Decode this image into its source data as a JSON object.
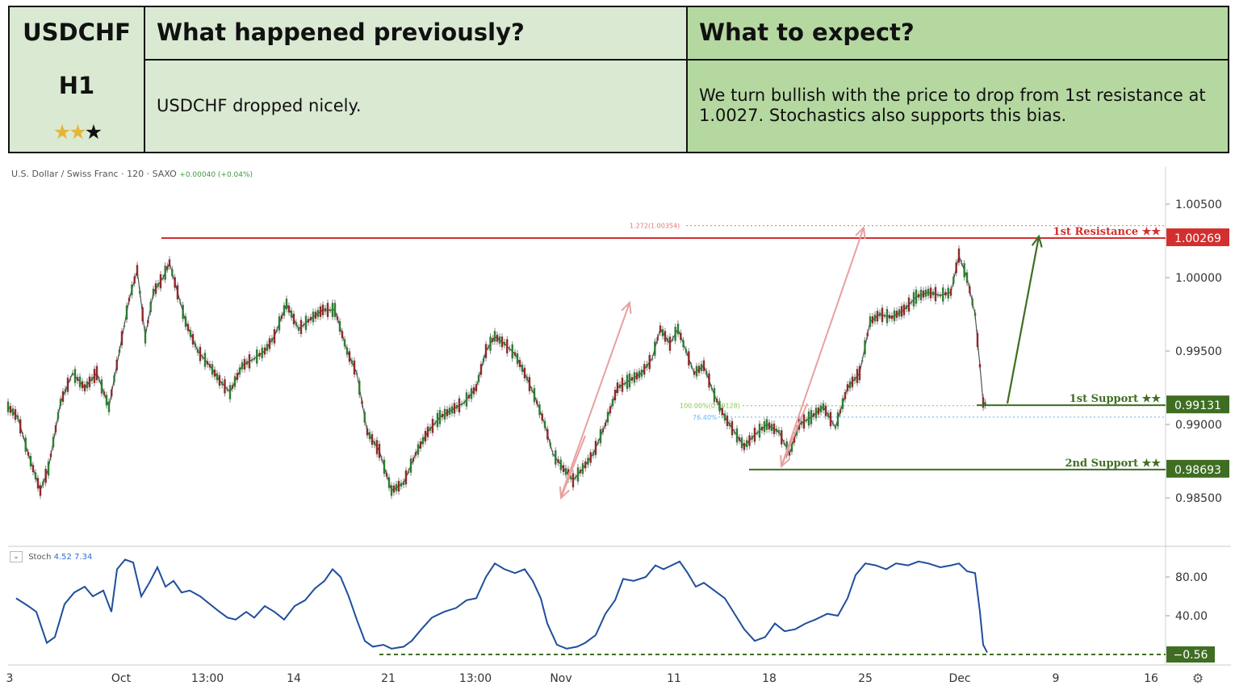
{
  "header": {
    "symbol": "USDCHF",
    "timeframe": "H1",
    "rating_stars": 2,
    "rating_max": 3,
    "previous_title": "What happened previously?",
    "previous_text": "USDCHF dropped nicely.",
    "expect_title": "What to expect?",
    "expect_text": "We turn bullish with the price to drop from 1st resistance at 1.0027. Stochastics also supports this bias.",
    "colors": {
      "left_bg": "#dae9d2",
      "right_bg": "#b5d8a1"
    }
  },
  "chart_caption": {
    "instrument": "U.S. Dollar / Swiss Franc · 120 · SAXO",
    "change": "+0.00040 (+0.04%)"
  },
  "stoch_caption": {
    "name": "Stoch",
    "k": "4.52",
    "d": "7.34",
    "collapse_icon": "chevron-down-icon"
  },
  "settings_icon": "gear-icon",
  "chart_data": {
    "type": "line",
    "title": "",
    "price_axis": {
      "ticks": [
        "1.00500",
        "1.00000",
        "0.99500",
        "0.99000",
        "0.98500"
      ],
      "range": [
        0.982,
        1.008
      ]
    },
    "x_ticks": [
      "3",
      "Oct",
      "13:00",
      "14",
      "21",
      "13:00",
      "Nov",
      "11",
      "18",
      "25",
      "Dec",
      "9",
      "16"
    ],
    "price_series": {
      "name": "",
      "points": [
        [
          0,
          0.9912
        ],
        [
          12,
          0.9905
        ],
        [
          25,
          0.988
        ],
        [
          40,
          0.9855
        ],
        [
          50,
          0.987
        ],
        [
          65,
          0.9915
        ],
        [
          80,
          0.9935
        ],
        [
          95,
          0.9925
        ],
        [
          110,
          0.9935
        ],
        [
          125,
          0.9912
        ],
        [
          138,
          0.995
        ],
        [
          150,
          0.9985
        ],
        [
          160,
          1.0005
        ],
        [
          170,
          0.996
        ],
        [
          180,
          0.999
        ],
        [
          192,
          1.0
        ],
        [
          200,
          1.001
        ],
        [
          210,
          0.999
        ],
        [
          220,
          0.997
        ],
        [
          235,
          0.995
        ],
        [
          250,
          0.994
        ],
        [
          262,
          0.993
        ],
        [
          275,
          0.9922
        ],
        [
          290,
          0.994
        ],
        [
          305,
          0.9945
        ],
        [
          318,
          0.995
        ],
        [
          330,
          0.996
        ],
        [
          345,
          0.9982
        ],
        [
          360,
          0.9965
        ],
        [
          375,
          0.9972
        ],
        [
          390,
          0.9978
        ],
        [
          405,
          0.9978
        ],
        [
          420,
          0.995
        ],
        [
          432,
          0.9935
        ],
        [
          445,
          0.9895
        ],
        [
          460,
          0.9882
        ],
        [
          475,
          0.9855
        ],
        [
          490,
          0.986
        ],
        [
          505,
          0.988
        ],
        [
          520,
          0.9895
        ],
        [
          535,
          0.9905
        ],
        [
          550,
          0.991
        ],
        [
          565,
          0.9915
        ],
        [
          580,
          0.9925
        ],
        [
          592,
          0.995
        ],
        [
          603,
          0.996
        ],
        [
          615,
          0.9955
        ],
        [
          628,
          0.9948
        ],
        [
          640,
          0.9935
        ],
        [
          652,
          0.992
        ],
        [
          665,
          0.99
        ],
        [
          675,
          0.988
        ],
        [
          688,
          0.987
        ],
        [
          700,
          0.9862
        ],
        [
          712,
          0.987
        ],
        [
          725,
          0.988
        ],
        [
          740,
          0.99
        ],
        [
          755,
          0.9925
        ],
        [
          770,
          0.993
        ],
        [
          785,
          0.9935
        ],
        [
          798,
          0.9945
        ],
        [
          808,
          0.9965
        ],
        [
          820,
          0.9955
        ],
        [
          830,
          0.9965
        ],
        [
          840,
          0.995
        ],
        [
          850,
          0.9935
        ],
        [
          862,
          0.994
        ],
        [
          875,
          0.992
        ],
        [
          888,
          0.9905
        ],
        [
          900,
          0.9895
        ],
        [
          912,
          0.9885
        ],
        [
          925,
          0.9893
        ],
        [
          940,
          0.99
        ],
        [
          955,
          0.9895
        ],
        [
          968,
          0.988
        ],
        [
          980,
          0.99
        ],
        [
          995,
          0.9905
        ],
        [
          1010,
          0.9912
        ],
        [
          1025,
          0.9898
        ],
        [
          1040,
          0.9925
        ],
        [
          1055,
          0.9935
        ],
        [
          1068,
          0.997
        ],
        [
          1080,
          0.9975
        ],
        [
          1095,
          0.9973
        ],
        [
          1110,
          0.9978
        ],
        [
          1125,
          0.9987
        ],
        [
          1140,
          0.999
        ],
        [
          1155,
          0.9988
        ],
        [
          1168,
          0.999
        ],
        [
          1178,
          1.0015
        ],
        [
          1188,
          1.0
        ],
        [
          1198,
          0.9975
        ],
        [
          1204,
          0.994
        ],
        [
          1208,
          0.9915
        ],
        [
          1213,
          0.9913
        ]
      ]
    },
    "levels": [
      {
        "label": "1st Resistance ★★",
        "value": 1.00269,
        "value_label": "1.00269",
        "color": "#d32f2f"
      },
      {
        "label": "1st Support ★★",
        "value": 0.99131,
        "value_label": "0.99131",
        "color": "#3f6e23"
      },
      {
        "label": "2nd Support ★★",
        "value": 0.98693,
        "value_label": "0.98693",
        "color": "#3f6e23"
      }
    ],
    "fib_annotations": [
      {
        "label": "1.272(1.00354)",
        "value": 1.00354,
        "color": "#e57373"
      },
      {
        "label": "100.00%(0.99128)",
        "value": 0.99128,
        "color": "#8bc34a"
      },
      {
        "label": "76.40%",
        "value": 0.9905,
        "color": "#64b5f6"
      }
    ],
    "stochastic": {
      "name": "Stoch",
      "ticks": [
        "80.00",
        "40.00"
      ],
      "range": [
        -12,
        108
      ],
      "current_label": "−0.56",
      "points": [
        [
          10,
          58
        ],
        [
          25,
          50
        ],
        [
          35,
          44
        ],
        [
          48,
          12
        ],
        [
          58,
          18
        ],
        [
          70,
          52
        ],
        [
          82,
          64
        ],
        [
          95,
          70
        ],
        [
          105,
          60
        ],
        [
          118,
          66
        ],
        [
          128,
          44
        ],
        [
          135,
          88
        ],
        [
          145,
          98
        ],
        [
          155,
          95
        ],
        [
          165,
          60
        ],
        [
          175,
          74
        ],
        [
          185,
          90
        ],
        [
          195,
          70
        ],
        [
          205,
          76
        ],
        [
          215,
          64
        ],
        [
          225,
          66
        ],
        [
          238,
          60
        ],
        [
          250,
          52
        ],
        [
          262,
          44
        ],
        [
          272,
          38
        ],
        [
          282,
          36
        ],
        [
          295,
          44
        ],
        [
          305,
          38
        ],
        [
          318,
          50
        ],
        [
          330,
          44
        ],
        [
          342,
          36
        ],
        [
          355,
          50
        ],
        [
          368,
          56
        ],
        [
          380,
          68
        ],
        [
          392,
          76
        ],
        [
          402,
          88
        ],
        [
          412,
          80
        ],
        [
          422,
          60
        ],
        [
          432,
          36
        ],
        [
          442,
          14
        ],
        [
          452,
          8
        ],
        [
          465,
          10
        ],
        [
          475,
          6
        ],
        [
          490,
          8
        ],
        [
          500,
          14
        ],
        [
          512,
          26
        ],
        [
          525,
          38
        ],
        [
          540,
          44
        ],
        [
          555,
          48
        ],
        [
          568,
          56
        ],
        [
          580,
          58
        ],
        [
          592,
          80
        ],
        [
          603,
          94
        ],
        [
          615,
          88
        ],
        [
          628,
          84
        ],
        [
          640,
          88
        ],
        [
          650,
          76
        ],
        [
          660,
          58
        ],
        [
          668,
          32
        ],
        [
          680,
          10
        ],
        [
          692,
          6
        ],
        [
          705,
          8
        ],
        [
          715,
          12
        ],
        [
          728,
          20
        ],
        [
          740,
          42
        ],
        [
          752,
          56
        ],
        [
          762,
          78
        ],
        [
          775,
          76
        ],
        [
          790,
          80
        ],
        [
          802,
          92
        ],
        [
          812,
          88
        ],
        [
          822,
          92
        ],
        [
          832,
          96
        ],
        [
          842,
          84
        ],
        [
          852,
          70
        ],
        [
          862,
          74
        ],
        [
          875,
          66
        ],
        [
          888,
          58
        ],
        [
          900,
          42
        ],
        [
          912,
          26
        ],
        [
          925,
          14
        ],
        [
          938,
          18
        ],
        [
          950,
          32
        ],
        [
          962,
          24
        ],
        [
          975,
          26
        ],
        [
          988,
          32
        ],
        [
          1000,
          36
        ],
        [
          1015,
          42
        ],
        [
          1028,
          40
        ],
        [
          1040,
          58
        ],
        [
          1050,
          82
        ],
        [
          1062,
          94
        ],
        [
          1075,
          92
        ],
        [
          1088,
          88
        ],
        [
          1100,
          94
        ],
        [
          1115,
          92
        ],
        [
          1128,
          96
        ],
        [
          1140,
          94
        ],
        [
          1155,
          90
        ],
        [
          1168,
          92
        ],
        [
          1178,
          94
        ],
        [
          1188,
          86
        ],
        [
          1198,
          84
        ],
        [
          1204,
          44
        ],
        [
          1208,
          10
        ],
        [
          1213,
          2
        ]
      ]
    }
  }
}
